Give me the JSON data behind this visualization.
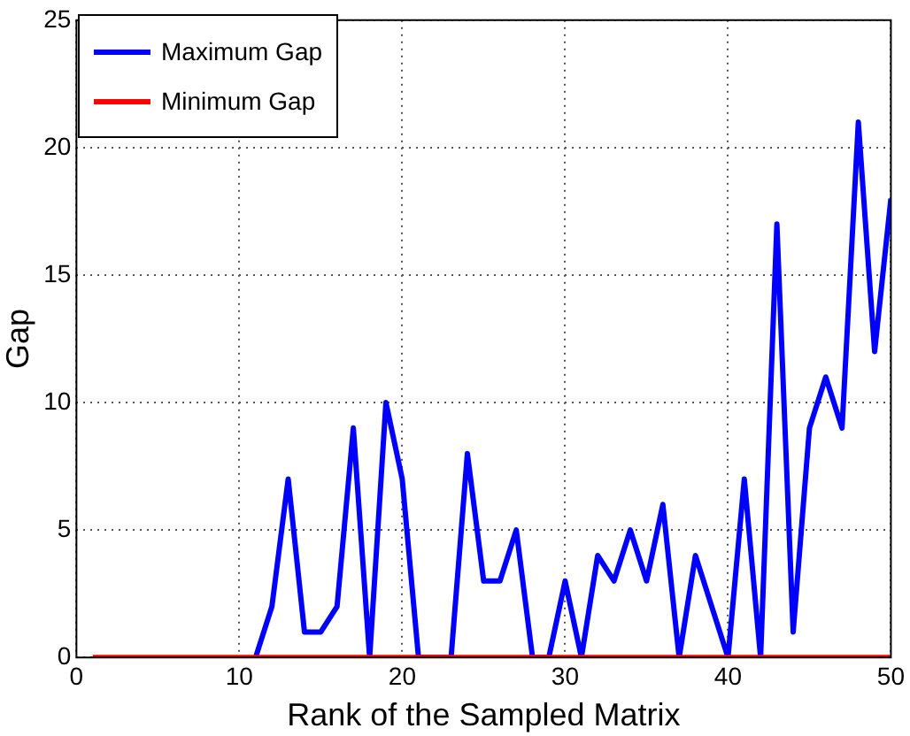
{
  "chart_data": {
    "type": "line",
    "xlabel": "Rank of the Sampled Matrix",
    "ylabel": "Gap",
    "x": [
      1,
      2,
      3,
      4,
      5,
      6,
      7,
      8,
      9,
      10,
      11,
      12,
      13,
      14,
      15,
      16,
      17,
      18,
      19,
      20,
      21,
      22,
      23,
      24,
      25,
      26,
      27,
      28,
      29,
      30,
      31,
      32,
      33,
      34,
      35,
      36,
      37,
      38,
      39,
      40,
      41,
      42,
      43,
      44,
      45,
      46,
      47,
      48,
      49,
      50
    ],
    "series": [
      {
        "name": "Maximum Gap",
        "color": "#0000ff",
        "values": [
          null,
          null,
          null,
          null,
          null,
          null,
          null,
          null,
          null,
          null,
          0,
          2,
          7,
          1,
          1,
          2,
          9,
          0,
          10,
          7,
          0,
          0,
          0,
          8,
          3,
          3,
          5,
          0,
          0,
          3,
          0,
          4,
          3,
          5,
          3,
          6,
          0,
          4,
          2,
          0,
          7,
          0,
          17,
          1,
          9,
          11,
          9,
          21,
          12,
          18
        ]
      },
      {
        "name": "Minimum Gap",
        "color": "#ff0000",
        "values": [
          0,
          0,
          0,
          0,
          0,
          0,
          0,
          0,
          0,
          0,
          0,
          0,
          0,
          0,
          0,
          0,
          0,
          0,
          0,
          0,
          0,
          0,
          0,
          0,
          0,
          0,
          0,
          0,
          0,
          0,
          0,
          0,
          0,
          0,
          0,
          0,
          0,
          0,
          0,
          0,
          0,
          0,
          0,
          0,
          0,
          0,
          0,
          0,
          0,
          0
        ]
      }
    ],
    "xlim": [
      0,
      50
    ],
    "xticks": [
      0,
      10,
      20,
      30,
      40,
      50
    ],
    "ylim": [
      0,
      25
    ],
    "yticks": [
      0,
      5,
      10,
      15,
      20,
      25
    ],
    "grid": true,
    "legend": "top left",
    "marker": "none",
    "line_style": "solid"
  }
}
